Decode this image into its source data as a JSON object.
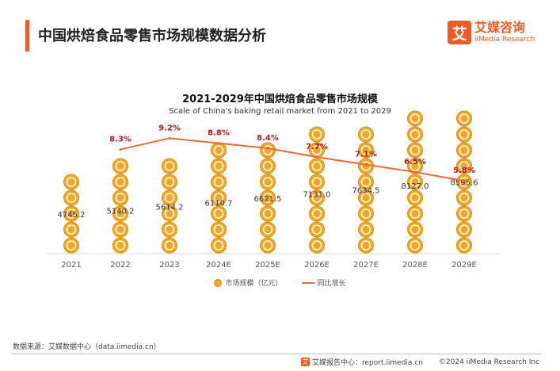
{
  "page": {
    "title": "中国烘焙食品零售市场规模数据分析",
    "logo_mark": "艾",
    "logo_cn": "艾媒咨询",
    "logo_en": "iiMedia Research"
  },
  "chart_data": {
    "type": "bar",
    "title": "2021-2029年中国烘焙食品零售市场规模",
    "subtitle": "Scale of China's baking retail market from 2021 to 2029",
    "categories": [
      "2021",
      "2022",
      "2023",
      "2024E",
      "2025E",
      "2026E",
      "2027E",
      "2028E",
      "2029E"
    ],
    "series": [
      {
        "name": "市场规模（亿元）",
        "kind": "bar",
        "values": [
          4745.2,
          5140.2,
          5614.2,
          6110.7,
          6621.5,
          7131.0,
          7634.5,
          8127.0,
          8595.6
        ]
      },
      {
        "name": "同比增长",
        "kind": "line",
        "values": [
          null,
          8.3,
          9.2,
          8.8,
          8.4,
          7.7,
          7.1,
          6.5,
          5.8
        ]
      }
    ],
    "bar_labels": [
      "4745.2",
      "5140.2",
      "5614.2",
      "6110.7",
      "6621.5",
      "7131.0",
      "7634.5",
      "8127.0",
      "8595.6"
    ],
    "line_labels": [
      "",
      "8.3%",
      "9.2%",
      "8.8%",
      "8.4%",
      "7.7%",
      "7.1%",
      "6.5%",
      "5.8%"
    ],
    "bar_ylim": [
      0,
      9000
    ],
    "line_ylim": [
      0,
      12
    ],
    "colors": {
      "coin": "#f5a623",
      "coin_edge": "#e08e0b",
      "line": "#ef6a30",
      "line_label": "#c0141a"
    }
  },
  "footer": {
    "source": "数据来源：艾媒数据中心（data.iimedia.cn）",
    "report_center": "艾媒报告中心：report.iimedia.cn",
    "copyright": "©2024 iiMedia Research Inc",
    "mini_logo": "艾"
  }
}
